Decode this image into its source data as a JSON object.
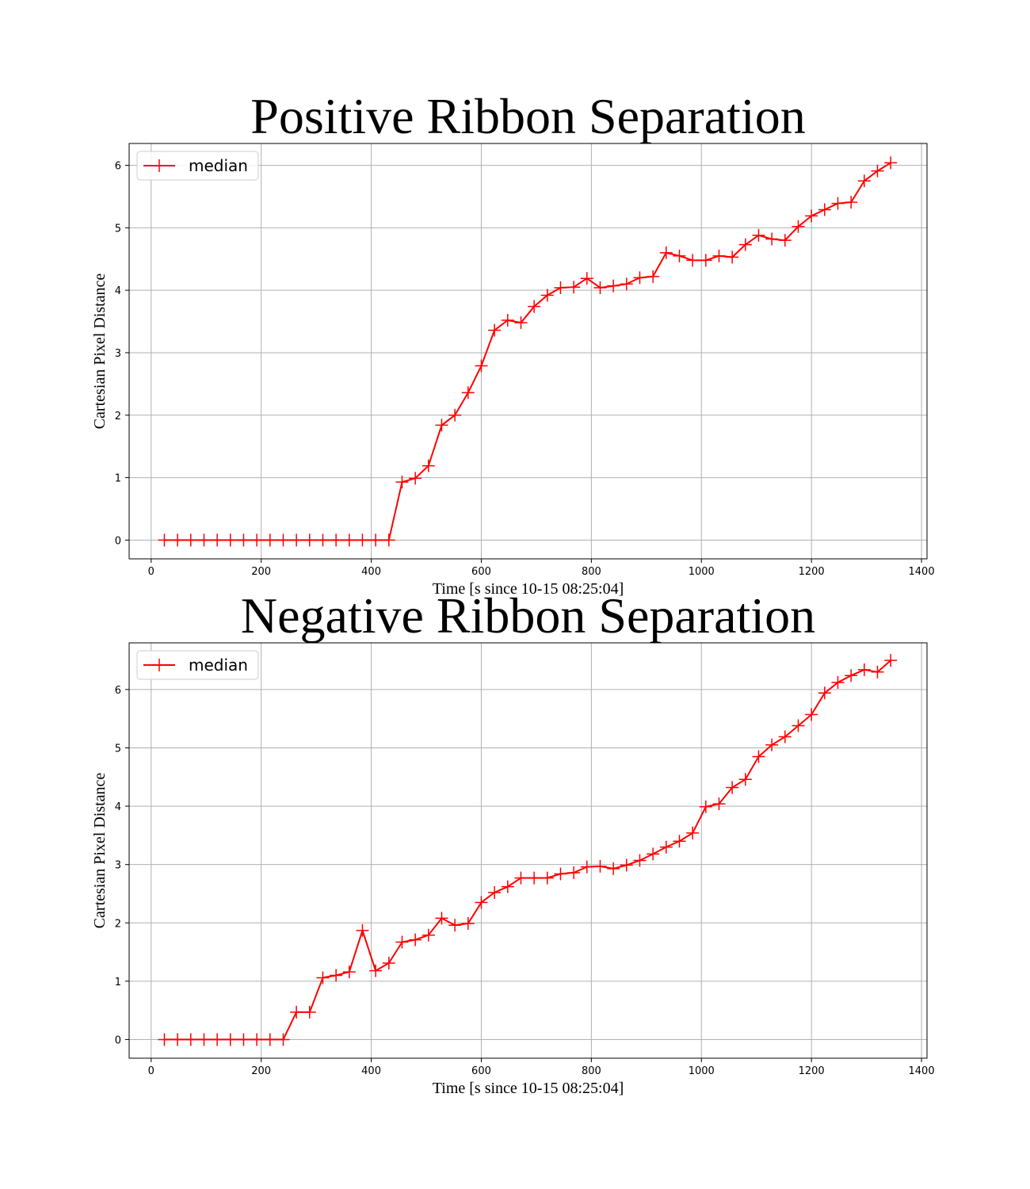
{
  "chart_data": [
    {
      "type": "line",
      "title": "Positive Ribbon Separation",
      "xlabel": "Time [s since 10-15 08:25:04]",
      "ylabel": "Cartesian Pixel Distance",
      "xlim": [
        -40,
        1410
      ],
      "ylim": [
        -0.3,
        6.35
      ],
      "xticks": [
        0,
        200,
        400,
        600,
        800,
        1000,
        1200,
        1400
      ],
      "yticks": [
        0,
        1,
        2,
        3,
        4,
        5,
        6
      ],
      "grid": true,
      "legend_position": "top-left",
      "color": "#ff0000",
      "marker": "+",
      "series": [
        {
          "name": "median",
          "x": [
            24,
            48,
            72,
            96,
            120,
            144,
            168,
            192,
            216,
            240,
            264,
            288,
            312,
            336,
            360,
            384,
            408,
            432,
            456,
            480,
            504,
            528,
            552,
            576,
            600,
            624,
            648,
            672,
            696,
            720,
            744,
            768,
            792,
            816,
            840,
            864,
            888,
            912,
            936,
            960,
            984,
            1008,
            1032,
            1056,
            1080,
            1104,
            1128,
            1152,
            1176,
            1200,
            1224,
            1248,
            1272,
            1296,
            1320,
            1344
          ],
          "y": [
            0,
            0,
            0,
            0,
            0,
            0,
            0,
            0,
            0,
            0,
            0,
            0,
            0,
            0,
            0,
            0,
            0,
            0,
            0.93,
            0.99,
            1.19,
            1.84,
            2.0,
            2.36,
            2.79,
            3.36,
            3.52,
            3.48,
            3.74,
            3.92,
            4.04,
            4.05,
            4.19,
            4.04,
            4.07,
            4.1,
            4.2,
            4.22,
            4.6,
            4.55,
            4.48,
            4.48,
            4.55,
            4.53,
            4.73,
            4.88,
            4.82,
            4.8,
            5.02,
            5.19,
            5.29,
            5.39,
            5.41,
            5.75,
            5.91,
            6.04
          ]
        }
      ]
    },
    {
      "type": "line",
      "title": "Negative Ribbon Separation",
      "xlabel": "Time [s since 10-15 08:25:04]",
      "ylabel": "Cartesian Pixel Distance",
      "xlim": [
        -40,
        1410
      ],
      "ylim": [
        -0.32,
        6.8
      ],
      "xticks": [
        0,
        200,
        400,
        600,
        800,
        1000,
        1200,
        1400
      ],
      "yticks": [
        0,
        1,
        2,
        3,
        4,
        5,
        6
      ],
      "grid": true,
      "legend_position": "top-left",
      "color": "#ff0000",
      "marker": "+",
      "series": [
        {
          "name": "median",
          "x": [
            24,
            48,
            72,
            96,
            120,
            144,
            168,
            192,
            216,
            240,
            264,
            288,
            312,
            336,
            360,
            384,
            408,
            432,
            456,
            480,
            504,
            528,
            552,
            576,
            600,
            624,
            648,
            672,
            696,
            720,
            744,
            768,
            792,
            816,
            840,
            864,
            888,
            912,
            936,
            960,
            984,
            1008,
            1032,
            1056,
            1080,
            1104,
            1128,
            1152,
            1176,
            1200,
            1224,
            1248,
            1272,
            1296,
            1320,
            1344
          ],
          "y": [
            0,
            0,
            0,
            0,
            0,
            0,
            0,
            0,
            0,
            0,
            0.47,
            0.47,
            1.06,
            1.1,
            1.16,
            1.87,
            1.18,
            1.31,
            1.67,
            1.71,
            1.79,
            2.08,
            1.96,
            1.99,
            2.35,
            2.52,
            2.62,
            2.77,
            2.77,
            2.77,
            2.84,
            2.86,
            2.96,
            2.97,
            2.93,
            2.99,
            3.07,
            3.18,
            3.3,
            3.4,
            3.54,
            3.99,
            4.04,
            4.32,
            4.46,
            4.85,
            5.05,
            5.19,
            5.38,
            5.57,
            5.94,
            6.12,
            6.24,
            6.34,
            6.3,
            6.5
          ]
        }
      ]
    }
  ]
}
